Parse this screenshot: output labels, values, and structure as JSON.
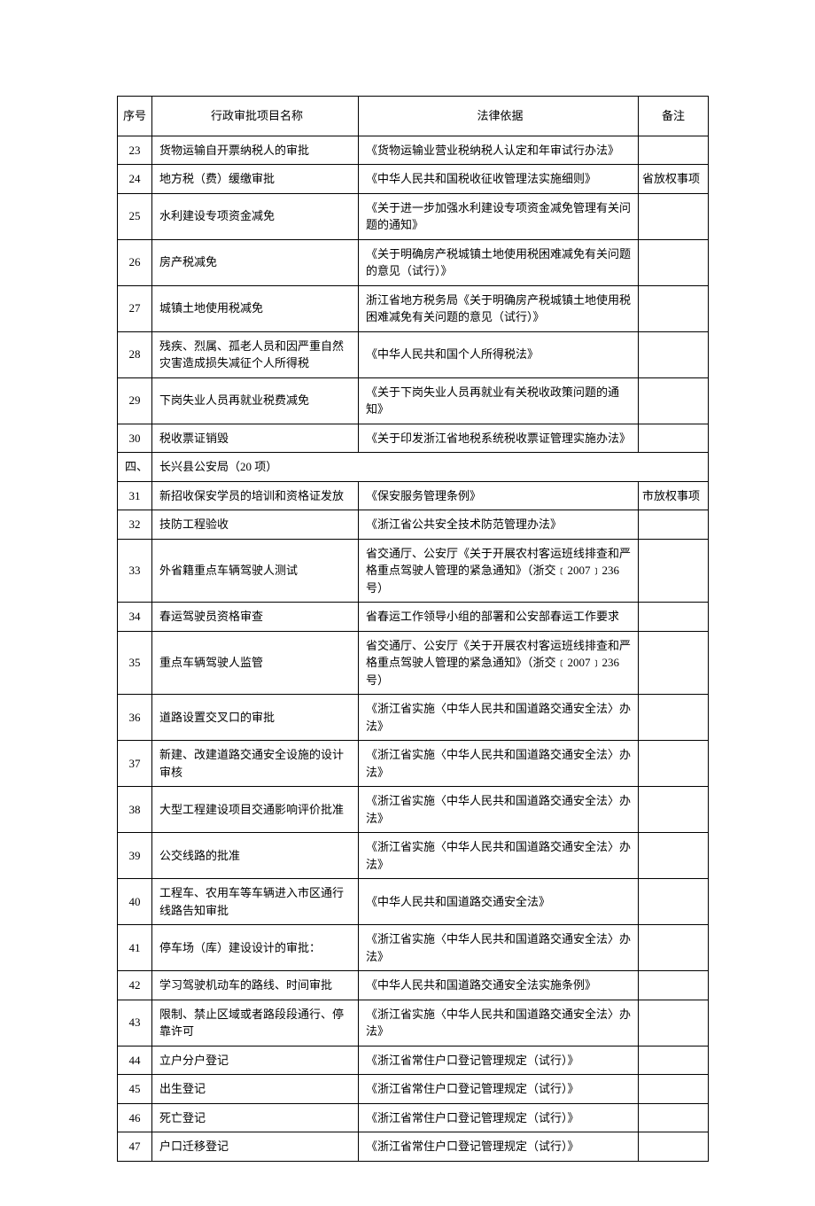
{
  "headers": {
    "seq": "序号",
    "name": "行政审批项目名称",
    "basis": "法律依据",
    "note": "备注"
  },
  "rows": [
    {
      "type": "data",
      "seq": "23",
      "name": "货物运输自开票纳税人的审批",
      "basis": "《货物运输业营业税纳税人认定和年审试行办法》",
      "note": ""
    },
    {
      "type": "data",
      "seq": "24",
      "name": "地方税（费）缓缴审批",
      "basis": "《中华人民共和国税收征收管理法实施细则》",
      "note": "省放权事项"
    },
    {
      "type": "data",
      "seq": "25",
      "name": "水利建设专项资金减免",
      "basis": "《关于进一步加强水利建设专项资金减免管理有关问题的通知》",
      "note": ""
    },
    {
      "type": "data",
      "seq": "26",
      "name": "房产税减免",
      "basis": "《关于明确房产税城镇土地使用税困难减免有关问题的意见（试行）》",
      "note": ""
    },
    {
      "type": "data",
      "seq": "27",
      "name": "城镇土地使用税减免",
      "basis": "浙江省地方税务局《关于明确房产税城镇土地使用税困难减免有关问题的意见（试行）》",
      "note": ""
    },
    {
      "type": "data",
      "seq": "28",
      "name": "残疾、烈属、孤老人员和因严重自然灾害造成损失减征个人所得税",
      "basis": "《中华人民共和国个人所得税法》",
      "note": ""
    },
    {
      "type": "data",
      "seq": "29",
      "name": "下岗失业人员再就业税费减免",
      "basis": "《关于下岗失业人员再就业有关税收政策问题的通知》",
      "note": ""
    },
    {
      "type": "data",
      "seq": "30",
      "name": "税收票证销毁",
      "basis": "《关于印发浙江省地税系统税收票证管理实施办法》",
      "note": ""
    },
    {
      "type": "section",
      "seq": "四、",
      "label": "长兴县公安局（20 项）"
    },
    {
      "type": "data",
      "seq": "31",
      "name": "新招收保安学员的培训和资格证发放",
      "basis": "《保安服务管理条例》",
      "note": "市放权事项"
    },
    {
      "type": "data",
      "seq": "32",
      "name": "技防工程验收",
      "basis": "《浙江省公共安全技术防范管理办法》",
      "note": ""
    },
    {
      "type": "data",
      "seq": "33",
      "name": "外省籍重点车辆驾驶人测试",
      "basis": "省交通厅、公安厅《关于开展农村客运班线排查和严格重点驾驶人管理的紧急通知》（浙交﹝2007﹞236 号）",
      "note": ""
    },
    {
      "type": "data",
      "seq": "34",
      "name": "春运驾驶员资格审查",
      "basis": "省春运工作领导小组的部署和公安部春运工作要求",
      "note": ""
    },
    {
      "type": "data",
      "seq": "35",
      "name": "重点车辆驾驶人监管",
      "basis": "省交通厅、公安厅《关于开展农村客运班线排查和严格重点驾驶人管理的紧急通知》（浙交﹝2007﹞236号）",
      "note": ""
    },
    {
      "type": "data",
      "seq": "36",
      "name": "道路设置交叉口的审批",
      "basis": "《浙江省实施〈中华人民共和国道路交通安全法〉办法》",
      "note": ""
    },
    {
      "type": "data",
      "seq": "37",
      "name": "新建、改建道路交通安全设施的设计审核",
      "basis": "《浙江省实施〈中华人民共和国道路交通安全法〉办法》",
      "note": ""
    },
    {
      "type": "data",
      "seq": "38",
      "name": "大型工程建设项目交通影响评价批准",
      "basis": "《浙江省实施〈中华人民共和国道路交通安全法〉办法》",
      "note": ""
    },
    {
      "type": "data",
      "seq": "39",
      "name": "公交线路的批准",
      "basis": "《浙江省实施〈中华人民共和国道路交通安全法〉办法》",
      "note": ""
    },
    {
      "type": "data",
      "seq": "40",
      "name": "工程车、农用车等车辆进入市区通行线路告知审批",
      "basis": "《中华人民共和国道路交通安全法》",
      "note": ""
    },
    {
      "type": "data",
      "seq": "41",
      "name": "停车场（库）建设设计的审批：",
      "basis": "《浙江省实施〈中华人民共和国道路交通安全法〉办法》",
      "note": ""
    },
    {
      "type": "data",
      "seq": "42",
      "name": "学习驾驶机动车的路线、时间审批",
      "basis": "《中华人民共和国道路交通安全法实施条例》",
      "note": ""
    },
    {
      "type": "data",
      "seq": "43",
      "name": "限制、禁止区域或者路段段通行、停靠许可",
      "basis": "《浙江省实施〈中华人民共和国道路交通安全法〉办法》",
      "note": ""
    },
    {
      "type": "data",
      "seq": "44",
      "name": "立户分户登记",
      "basis": "《浙江省常住户口登记管理规定（试行）》",
      "note": ""
    },
    {
      "type": "data",
      "seq": "45",
      "name": "出生登记",
      "basis": "《浙江省常住户口登记管理规定（试行）》",
      "note": ""
    },
    {
      "type": "data",
      "seq": "46",
      "name": "死亡登记",
      "basis": "《浙江省常住户口登记管理规定（试行）》",
      "note": ""
    },
    {
      "type": "data",
      "seq": "47",
      "name": "户口迁移登记",
      "basis": "《浙江省常住户口登记管理规定（试行）》",
      "note": ""
    }
  ]
}
